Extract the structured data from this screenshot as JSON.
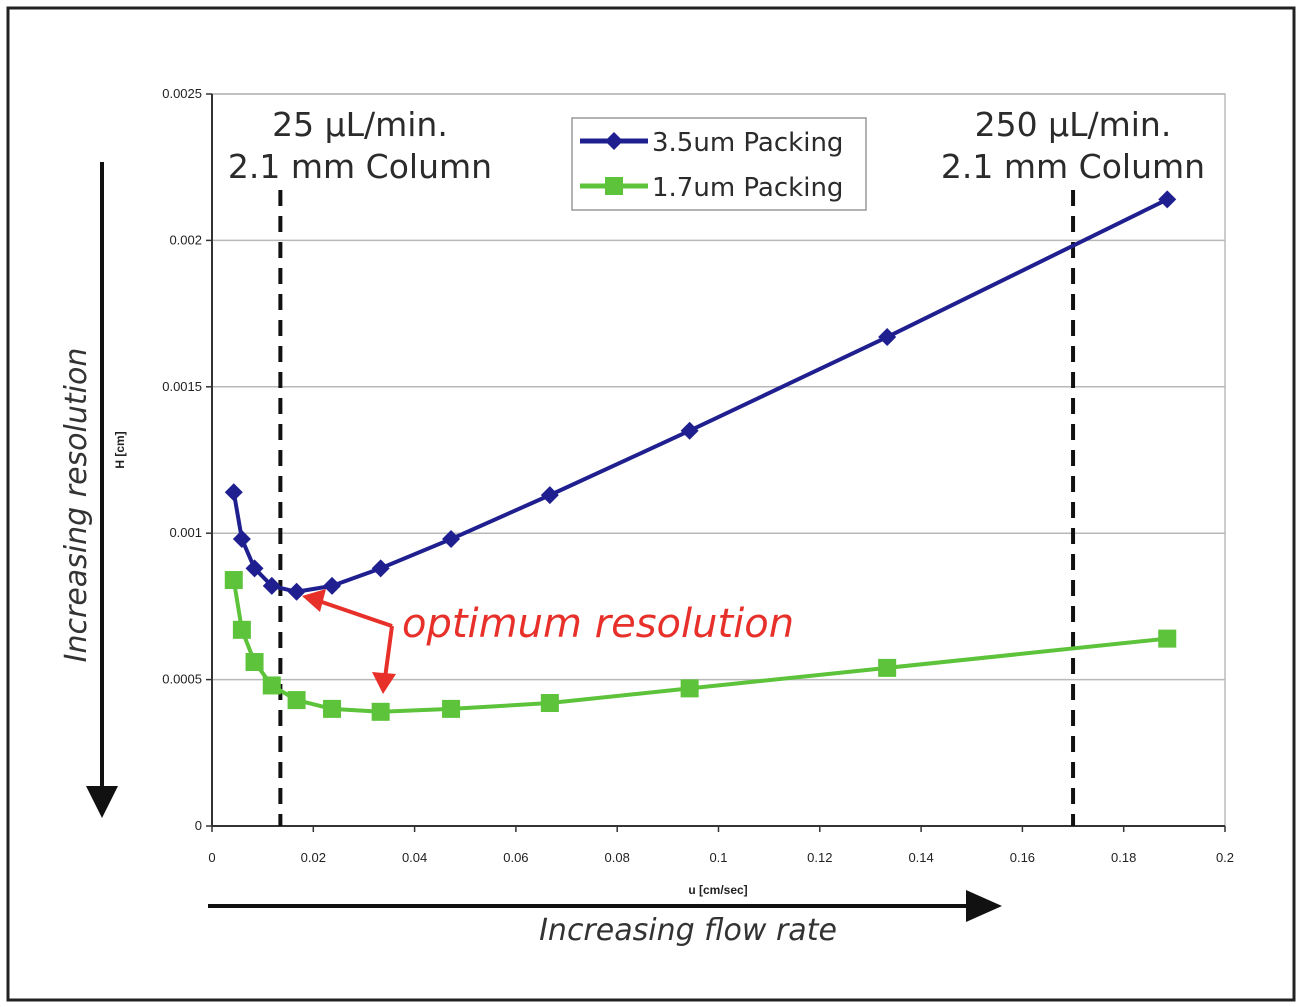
{
  "chart_data": {
    "type": "line",
    "title": "",
    "xlabel": "u [cm/sec]",
    "ylabel": "H [cm]",
    "xlim": [
      0,
      0.2
    ],
    "ylim": [
      0,
      0.0025
    ],
    "x_ticks": [
      "0",
      "0.02",
      "0.04",
      "0.06",
      "0.08",
      "0.1",
      "0.12",
      "0.14",
      "0.16",
      "0.18",
      "0.2"
    ],
    "y_ticks": [
      "0",
      "0.0005",
      "0.001",
      "0.0015",
      "0.002",
      "0.0025"
    ],
    "grid": "horizontal",
    "legend_position": "top-center",
    "series": [
      {
        "name": "3.5um Packing",
        "color": "#1f1f8f",
        "marker": "diamond",
        "x": [
          0.0043,
          0.0059,
          0.0084,
          0.0118,
          0.0167,
          0.0237,
          0.0333,
          0.0472,
          0.0667,
          0.0943,
          0.1333,
          0.1886
        ],
        "y": [
          0.00114,
          0.00098,
          0.00088,
          0.00082,
          0.0008,
          0.00082,
          0.00088,
          0.00098,
          0.00113,
          0.00135,
          0.00167,
          0.00214
        ]
      },
      {
        "name": "1.7um Packing",
        "color": "#5cc33a",
        "marker": "square",
        "x": [
          0.0043,
          0.0059,
          0.0084,
          0.0118,
          0.0167,
          0.0237,
          0.0333,
          0.0472,
          0.0667,
          0.0943,
          0.1333,
          0.1886
        ],
        "y": [
          0.00084,
          0.00067,
          0.00056,
          0.00048,
          0.00043,
          0.0004,
          0.00039,
          0.0004,
          0.00042,
          0.00047,
          0.00054,
          0.00064
        ]
      }
    ],
    "vlines": [
      {
        "x": 0.0135,
        "label_line1": "25 µL/min.",
        "label_line2": "2.1 mm Column"
      },
      {
        "x": 0.17,
        "label_line1": "250 µL/min.",
        "label_line2": "2.1 mm Column"
      }
    ],
    "annotations": {
      "optimum": "optimum resolution",
      "optimum_color": "#e8302a",
      "y_arrow_label": "Increasing resolution",
      "x_arrow_label": "Increasing flow rate"
    }
  }
}
